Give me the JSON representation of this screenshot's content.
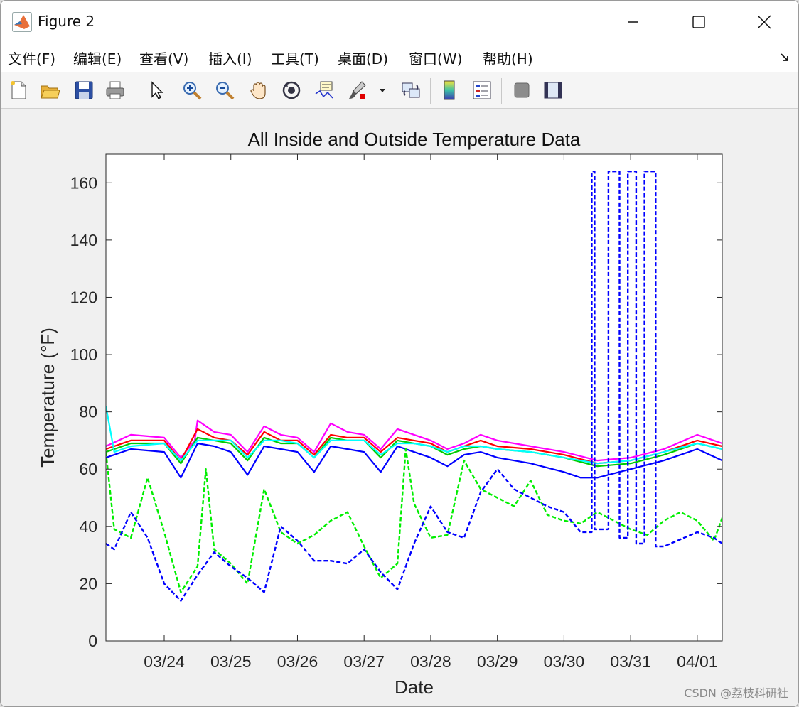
{
  "window": {
    "title": "Figure 2"
  },
  "menu": [
    "文件(F)",
    "编辑(E)",
    "查看(V)",
    "插入(I)",
    "工具(T)",
    "桌面(D)",
    "窗口(W)",
    "帮助(H)"
  ],
  "toolbar": {
    "icons": [
      "new-figure-icon",
      "open-file-icon",
      "save-icon",
      "print-icon",
      "pointer-icon",
      "zoom-in-icon",
      "zoom-out-icon",
      "pan-hand-icon",
      "rotate-3d-icon",
      "data-cursor-icon",
      "brush-icon",
      "link-plot-icon",
      "colorbar-icon",
      "legend-icon",
      "hide-plot-tools-icon",
      "show-plot-tools-icon"
    ]
  },
  "watermark": "CSDN @荔枝科研社",
  "chart_data": {
    "type": "line",
    "title": "All Inside and Outside Temperature Data",
    "xlabel": "Date",
    "ylabel": "Temperature (°F)",
    "xlim": [
      "03/23 03:00",
      "04/01 09:00"
    ],
    "ylim": [
      0,
      170
    ],
    "yticks": [
      0,
      20,
      40,
      60,
      80,
      100,
      120,
      140,
      160
    ],
    "xticks": [
      "03/24",
      "03/25",
      "03/26",
      "03/27",
      "03/28",
      "03/29",
      "03/30",
      "03/31",
      "04/01"
    ],
    "grid": false,
    "series": [
      {
        "color": "#ff00ff",
        "style": "solid",
        "x": [
          "03/23 03:00",
          "03/23 12:00",
          "03/24 00:00",
          "03/24 06:00",
          "03/24 11:00",
          "03/24 12:00",
          "03/24 18:00",
          "03/25 00:00",
          "03/25 06:00",
          "03/25 12:00",
          "03/25 18:00",
          "03/26 00:00",
          "03/26 06:00",
          "03/26 12:00",
          "03/26 18:00",
          "03/27 00:00",
          "03/27 06:00",
          "03/27 12:00",
          "03/27 18:00",
          "03/28 00:00",
          "03/28 06:00",
          "03/28 12:00",
          "03/28 18:00",
          "03/29 00:00",
          "03/29 12:00",
          "03/30 00:00",
          "03/30 12:00",
          "03/31 00:00",
          "03/31 12:00",
          "04/01 00:00",
          "04/01 09:00"
        ],
        "y": [
          68,
          72,
          71,
          64,
          70,
          77,
          73,
          72,
          66,
          75,
          72,
          71,
          66,
          76,
          73,
          72,
          67,
          74,
          72,
          70,
          67,
          69,
          72,
          70,
          68,
          66,
          63,
          64,
          67,
          72,
          69
        ]
      },
      {
        "color": "#ff0000",
        "style": "solid",
        "x": [
          "03/23 03:00",
          "03/23 12:00",
          "03/24 00:00",
          "03/24 06:00",
          "03/24 12:00",
          "03/24 18:00",
          "03/25 00:00",
          "03/25 06:00",
          "03/25 12:00",
          "03/25 18:00",
          "03/26 00:00",
          "03/26 06:00",
          "03/26 12:00",
          "03/26 18:00",
          "03/27 00:00",
          "03/27 06:00",
          "03/27 12:00",
          "03/27 18:00",
          "03/28 00:00",
          "03/28 06:00",
          "03/28 12:00",
          "03/28 18:00",
          "03/29 00:00",
          "03/29 12:00",
          "03/30 00:00",
          "03/30 12:00",
          "03/31 00:00",
          "03/31 12:00",
          "04/01 00:00",
          "04/01 09:00"
        ],
        "y": [
          67,
          70,
          70,
          63,
          74,
          71,
          70,
          65,
          73,
          70,
          70,
          65,
          72,
          71,
          71,
          66,
          71,
          70,
          69,
          66,
          68,
          70,
          68,
          67,
          65,
          62,
          63,
          66,
          70,
          68
        ]
      },
      {
        "color": "#00cc00",
        "style": "solid",
        "x": [
          "03/23 03:00",
          "03/23 12:00",
          "03/24 00:00",
          "03/24 06:00",
          "03/24 12:00",
          "03/24 18:00",
          "03/25 00:00",
          "03/25 06:00",
          "03/25 12:00",
          "03/25 18:00",
          "03/26 00:00",
          "03/26 06:00",
          "03/26 12:00",
          "03/26 18:00",
          "03/27 00:00",
          "03/27 06:00",
          "03/27 12:00",
          "03/27 18:00",
          "03/28 00:00",
          "03/28 06:00",
          "03/28 12:00",
          "03/28 18:00",
          "03/29 00:00",
          "03/29 12:00",
          "03/30 00:00",
          "03/30 12:00",
          "03/31 00:00",
          "03/31 12:00",
          "04/01 00:00",
          "04/01 09:00"
        ],
        "y": [
          66,
          69,
          69,
          62,
          71,
          70,
          69,
          63,
          71,
          69,
          69,
          64,
          71,
          70,
          70,
          64,
          70,
          69,
          68,
          65,
          67,
          68,
          67,
          66,
          64,
          61,
          62,
          65,
          69,
          67
        ]
      },
      {
        "color": "#0000ff",
        "style": "solid",
        "x": [
          "03/23 03:00",
          "03/23 12:00",
          "03/24 00:00",
          "03/24 06:00",
          "03/24 12:00",
          "03/24 18:00",
          "03/25 00:00",
          "03/25 06:00",
          "03/25 12:00",
          "03/25 18:00",
          "03/26 00:00",
          "03/26 06:00",
          "03/26 12:00",
          "03/26 18:00",
          "03/27 00:00",
          "03/27 06:00",
          "03/27 12:00",
          "03/27 18:00",
          "03/28 00:00",
          "03/28 06:00",
          "03/28 12:00",
          "03/28 18:00",
          "03/29 00:00",
          "03/29 12:00",
          "03/30 00:00",
          "03/30 06:00",
          "03/30 12:00",
          "03/31 00:00",
          "03/31 12:00",
          "04/01 00:00",
          "04/01 09:00"
        ],
        "y": [
          64,
          67,
          66,
          57,
          69,
          68,
          66,
          58,
          68,
          67,
          66,
          59,
          68,
          67,
          66,
          59,
          68,
          66,
          64,
          61,
          65,
          66,
          64,
          62,
          59,
          57,
          57,
          60,
          63,
          67,
          63
        ]
      },
      {
        "color": "#00ffff",
        "style": "solid",
        "x": [
          "03/23 03:00",
          "03/23 06:00",
          "03/23 12:00",
          "03/24 00:00",
          "03/24 06:00",
          "03/24 12:00",
          "03/24 18:00",
          "03/25 00:00",
          "03/25 06:00",
          "03/25 12:00",
          "03/25 18:00",
          "03/26 00:00",
          "03/26 06:00",
          "03/26 12:00",
          "03/26 18:00",
          "03/27 00:00",
          "03/27 06:00",
          "03/27 12:00",
          "03/27 18:00",
          "03/28 00:00",
          "03/28 06:00",
          "03/28 12:00",
          "03/28 18:00",
          "03/29 00:00",
          "03/29 12:00",
          "03/30 00:00",
          "03/30 12:00",
          "03/31 00:00",
          "03/31 12:00",
          "04/01 00:00",
          "04/01 09:00"
        ],
        "y": [
          82,
          66,
          68,
          69,
          63,
          70,
          70,
          70,
          64,
          70,
          70,
          69,
          64,
          70,
          70,
          70,
          65,
          69,
          69,
          68,
          66,
          68,
          68,
          67,
          66,
          64,
          62,
          63,
          66,
          69,
          67
        ]
      },
      {
        "color": "#00ee00",
        "style": "dashed",
        "x": [
          "03/23 03:00",
          "03/23 06:00",
          "03/23 12:00",
          "03/23 18:00",
          "03/24 00:00",
          "03/24 06:00",
          "03/24 12:00",
          "03/24 15:00",
          "03/24 18:00",
          "03/25 00:00",
          "03/25 06:00",
          "03/25 12:00",
          "03/25 18:00",
          "03/26 00:00",
          "03/26 06:00",
          "03/26 12:00",
          "03/26 18:00",
          "03/27 00:00",
          "03/27 06:00",
          "03/27 12:00",
          "03/27 15:00",
          "03/27 18:00",
          "03/28 00:00",
          "03/28 06:00",
          "03/28 12:00",
          "03/28 18:00",
          "03/29 00:00",
          "03/29 06:00",
          "03/29 12:00",
          "03/29 18:00",
          "03/30 00:00",
          "03/30 06:00",
          "03/30 12:00",
          "03/30 18:00",
          "03/31 00:00",
          "03/31 06:00",
          "03/31 12:00",
          "03/31 18:00",
          "04/01 00:00",
          "04/01 06:00",
          "04/01 09:00"
        ],
        "y": [
          66,
          39,
          36,
          57,
          38,
          17,
          26,
          60,
          32,
          27,
          20,
          53,
          38,
          34,
          37,
          42,
          45,
          33,
          22,
          27,
          67,
          48,
          36,
          37,
          63,
          53,
          50,
          47,
          56,
          44,
          42,
          41,
          45,
          42,
          39,
          37,
          42,
          45,
          42,
          35,
          43
        ]
      },
      {
        "color": "#0000ff",
        "style": "dashed",
        "x": [
          "03/23 03:00",
          "03/23 06:00",
          "03/23 12:00",
          "03/23 18:00",
          "03/24 00:00",
          "03/24 06:00",
          "03/24 12:00",
          "03/24 18:00",
          "03/25 00:00",
          "03/25 06:00",
          "03/25 12:00",
          "03/25 18:00",
          "03/26 00:00",
          "03/26 06:00",
          "03/26 12:00",
          "03/26 18:00",
          "03/27 00:00",
          "03/27 06:00",
          "03/27 12:00",
          "03/27 18:00",
          "03/28 00:00",
          "03/28 06:00",
          "03/28 12:00",
          "03/28 18:00",
          "03/29 00:00",
          "03/29 06:00",
          "03/29 12:00",
          "03/29 18:00",
          "03/30 00:00",
          "03/30 06:00",
          "03/30 10:00",
          "03/30 10:00",
          "03/30 11:00",
          "03/30 11:00",
          "03/30 16:00",
          "03/30 16:00",
          "03/30 20:00",
          "03/30 20:00",
          "03/30 23:00",
          "03/30 23:00",
          "03/31 02:00",
          "03/31 02:00",
          "03/31 05:00",
          "03/31 05:00",
          "03/31 09:00",
          "03/31 09:00",
          "03/31 12:00",
          "04/01 00:00",
          "04/01 06:00",
          "04/01 09:00"
        ],
        "y": [
          34,
          32,
          45,
          36,
          20,
          14,
          23,
          31,
          26,
          22,
          17,
          40,
          35,
          28,
          28,
          27,
          32,
          24,
          18,
          34,
          47,
          38,
          36,
          52,
          60,
          53,
          50,
          47,
          45,
          38,
          38,
          164,
          164,
          39,
          39,
          164,
          164,
          36,
          36,
          164,
          164,
          34,
          34,
          164,
          164,
          33,
          33,
          38,
          36,
          34
        ]
      }
    ]
  }
}
